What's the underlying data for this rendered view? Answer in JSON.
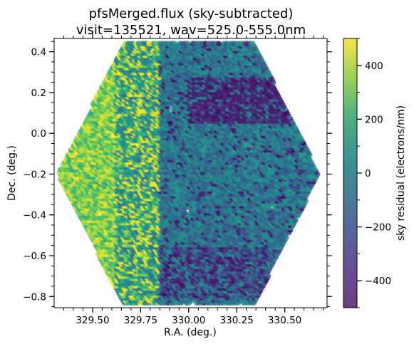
{
  "chart_data": {
    "type": "scatter",
    "title_line1": "pfsMerged.flux (sky-subtracted)",
    "title_line2": "visit=135521, wav=525.0-555.0nm",
    "xlabel": "R.A. (deg.)",
    "ylabel": "Dec. (deg.)",
    "xlim": [
      329.3,
      330.72
    ],
    "ylim": [
      -0.855,
      0.465
    ],
    "x_ticks": [
      "329.50",
      "329.75",
      "330.00",
      "330.25",
      "330.50"
    ],
    "y_ticks": [
      "−0.8",
      "−0.6",
      "−0.4",
      "−0.2",
      "0.0",
      "0.2",
      "0.4"
    ],
    "colorbar": {
      "label": "sky residual (electrons/nm)",
      "range": [
        -500,
        500
      ],
      "ticks": [
        "−400",
        "−200",
        "0",
        "200",
        "400"
      ],
      "colormap": "viridis"
    },
    "footprint": {
      "shape": "hexagon",
      "ra_center": 330.0,
      "dec_center": -0.2,
      "ra_half_width": 0.68,
      "dec_half_height": 0.64
    },
    "regions": [
      {
        "description": "east edge (low R.A.)",
        "ra_range": [
          329.3,
          329.62
        ],
        "approx_value": 500
      },
      {
        "description": "transition zone",
        "ra_range": [
          329.62,
          329.85
        ],
        "approx_value": 200
      },
      {
        "description": "central field",
        "ra_range": [
          329.85,
          330.68
        ],
        "approx_value": 0
      },
      {
        "description": "north band",
        "dec_range": [
          0.05,
          0.28
        ],
        "approx_value": -450
      },
      {
        "description": "south band",
        "dec_range": [
          -0.8,
          -0.55
        ],
        "approx_value": -300
      }
    ],
    "grid": false
  }
}
